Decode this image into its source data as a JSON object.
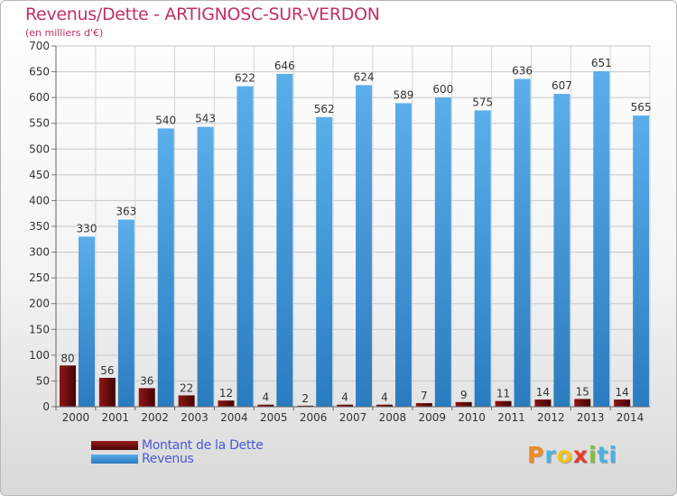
{
  "header": {
    "title": "Revenus/Dette - ARTIGNOSC-SUR-VERDON",
    "subtitle": "(en milliers d'€)"
  },
  "logo": {
    "letters": [
      "P",
      "r",
      "o",
      "x",
      "i",
      "t",
      "i"
    ],
    "colors": [
      "#f08a24",
      "#4ab2e0",
      "#f2c416",
      "#e43c2c",
      "#7cc142",
      "#4ab2e0",
      "#4ab2e0"
    ]
  },
  "chart_data": {
    "type": "bar",
    "categories": [
      "2000",
      "2001",
      "2002",
      "2003",
      "2004",
      "2005",
      "2006",
      "2007",
      "2008",
      "2009",
      "2010",
      "2011",
      "2012",
      "2013",
      "2014"
    ],
    "series": [
      {
        "name": "Montant de la Dette",
        "color": "#7a1010",
        "values": [
          80,
          56,
          36,
          22,
          12,
          4,
          2,
          4,
          4,
          7,
          9,
          11,
          14,
          15,
          14
        ]
      },
      {
        "name": "Revenus",
        "color": "#3f98dc",
        "values": [
          330,
          363,
          540,
          543,
          622,
          646,
          562,
          624,
          589,
          600,
          575,
          636,
          607,
          651,
          565
        ]
      }
    ],
    "yticks": [
      0,
      50,
      100,
      150,
      200,
      250,
      300,
      350,
      400,
      450,
      500,
      550,
      600,
      650,
      700
    ],
    "ylim": [
      0,
      700
    ],
    "grid": true,
    "legend": "bottom-left",
    "title": "Revenus/Dette - ARTIGNOSC-SUR-VERDON",
    "ylabel": "(en milliers d'€)"
  }
}
